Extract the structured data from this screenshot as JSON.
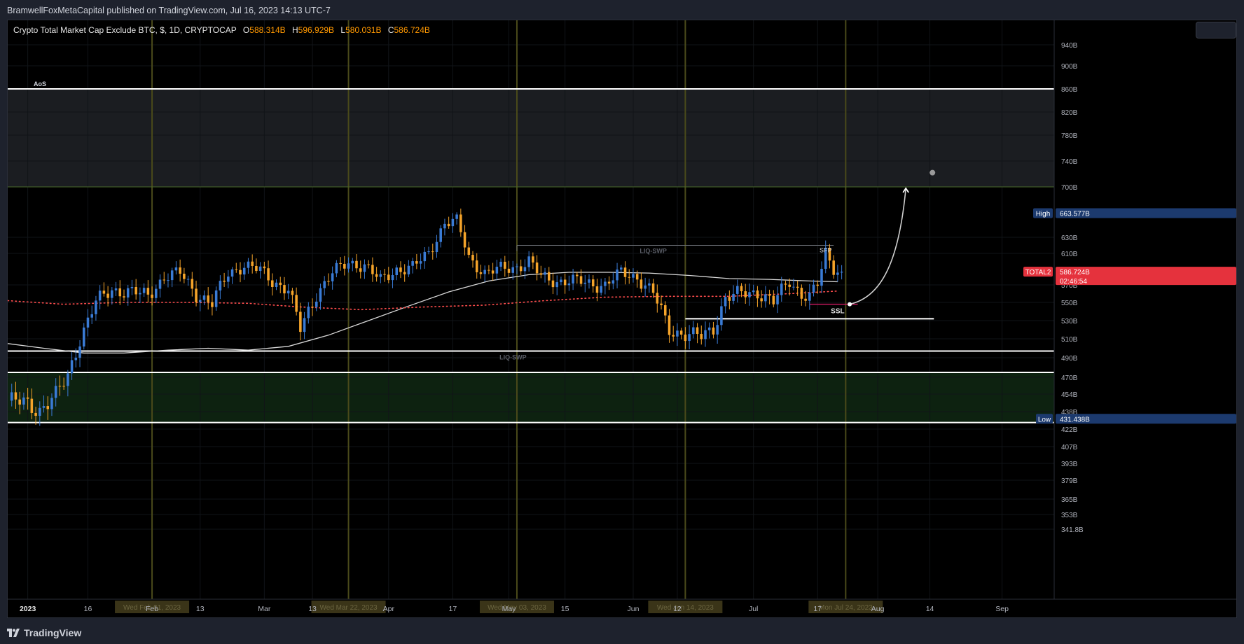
{
  "header": {
    "published": "BramwellFoxMetaCapital published on TradingView.com, Jul 16, 2023 14:13 UTC-7"
  },
  "legend": {
    "symbol": "Crypto Total Market Cap Exclude BTC, $, 1D, CRYPTOCAP",
    "open_label": "O",
    "open": "588.314B",
    "high_label": "H",
    "high": "596.929B",
    "low_label": "L",
    "low": "580.031B",
    "close_label": "C",
    "close": "586.724B"
  },
  "footer": {
    "brand": "TradingView"
  },
  "colors": {
    "background": "#000000",
    "up_candle": "#3a7bd5",
    "down_candle": "#f5a42a",
    "sma": "#d9d9d9",
    "ema_dots": "#ff4d4d",
    "supply_zone": "#1b1d21",
    "demand_zone": "#0d2210",
    "vline": "#4a4a1a",
    "badge_total": "#e5323d",
    "badge_high_low": "#1c3a6e"
  },
  "chart_data": {
    "type": "candlestick",
    "title": "Crypto Total Market Cap Exclude BTC, $, 1D, CRYPTOCAP",
    "x_range": [
      "2022-12-27",
      "2023-09-14"
    ],
    "ylim": [
      341.8,
      960
    ],
    "y_ticks": [
      "940B",
      "900B",
      "860B",
      "820B",
      "780B",
      "740B",
      "700B",
      "630B",
      "610B",
      "570B",
      "550B",
      "530B",
      "510B",
      "490B",
      "470B",
      "454B",
      "438B",
      "422B",
      "407B",
      "393B",
      "379B",
      "365B",
      "353B",
      "341.8B"
    ],
    "y_tick_values": [
      940,
      900,
      860,
      820,
      780,
      740,
      700,
      630,
      610,
      570,
      550,
      530,
      510,
      490,
      470,
      454,
      438,
      422,
      407,
      393,
      379,
      365,
      353,
      341.8
    ],
    "x_ticks": [
      {
        "label": "2023",
        "date": "2023-01-01",
        "bold": true
      },
      {
        "label": "16",
        "date": "2023-01-16"
      },
      {
        "label": "Feb",
        "date": "2023-02-01"
      },
      {
        "label": "13",
        "date": "2023-02-13"
      },
      {
        "label": "Mar",
        "date": "2023-03-01"
      },
      {
        "label": "13",
        "date": "2023-03-13"
      },
      {
        "label": "Apr",
        "date": "2023-04-01"
      },
      {
        "label": "17",
        "date": "2023-04-17"
      },
      {
        "label": "May",
        "date": "2023-05-01"
      },
      {
        "label": "15",
        "date": "2023-05-15"
      },
      {
        "label": "Jun",
        "date": "2023-06-01"
      },
      {
        "label": "12",
        "date": "2023-06-12"
      },
      {
        "label": "Jul",
        "date": "2023-07-01"
      },
      {
        "label": "17",
        "date": "2023-07-17"
      },
      {
        "label": "Aug",
        "date": "2023-08-01"
      },
      {
        "label": "14",
        "date": "2023-08-14"
      },
      {
        "label": "Sep",
        "date": "2023-09-01"
      }
    ],
    "date_markers": [
      {
        "label": "Wed Feb 01, 2023",
        "date": "2023-02-01"
      },
      {
        "label": "Wed Mar 22, 2023",
        "date": "2023-03-22"
      },
      {
        "label": "Wed May 03, 2023",
        "date": "2023-05-03"
      },
      {
        "label": "Wed Jun 14, 2023",
        "date": "2023-06-14"
      },
      {
        "label": "Mon Jul 24, 2023",
        "date": "2023-07-24"
      }
    ],
    "close_path": [
      [
        "2022-12-27",
        448
      ],
      [
        "2023-01-01",
        445
      ],
      [
        "2023-01-04",
        440
      ],
      [
        "2023-01-08",
        452
      ],
      [
        "2023-01-11",
        472
      ],
      [
        "2023-01-14",
        510
      ],
      [
        "2023-01-18",
        550
      ],
      [
        "2023-01-22",
        565
      ],
      [
        "2023-01-26",
        562
      ],
      [
        "2023-01-31",
        558
      ],
      [
        "2023-02-04",
        580
      ],
      [
        "2023-02-08",
        585
      ],
      [
        "2023-02-12",
        560
      ],
      [
        "2023-02-16",
        548
      ],
      [
        "2023-02-20",
        585
      ],
      [
        "2023-02-24",
        595
      ],
      [
        "2023-02-28",
        588
      ],
      [
        "2023-03-03",
        575
      ],
      [
        "2023-03-07",
        565
      ],
      [
        "2023-03-10",
        520
      ],
      [
        "2023-03-14",
        560
      ],
      [
        "2023-03-18",
        585
      ],
      [
        "2023-03-22",
        598
      ],
      [
        "2023-03-26",
        595
      ],
      [
        "2023-03-30",
        575
      ],
      [
        "2023-04-03",
        590
      ],
      [
        "2023-04-07",
        592
      ],
      [
        "2023-04-11",
        610
      ],
      [
        "2023-04-15",
        650
      ],
      [
        "2023-04-18",
        652
      ],
      [
        "2023-04-21",
        605
      ],
      [
        "2023-04-25",
        585
      ],
      [
        "2023-04-29",
        590
      ],
      [
        "2023-05-03",
        593
      ],
      [
        "2023-05-06",
        600
      ],
      [
        "2023-05-09",
        580
      ],
      [
        "2023-05-13",
        575
      ],
      [
        "2023-05-17",
        575
      ],
      [
        "2023-05-21",
        572
      ],
      [
        "2023-05-25",
        570
      ],
      [
        "2023-05-29",
        585
      ],
      [
        "2023-06-02",
        580
      ],
      [
        "2023-06-06",
        560
      ],
      [
        "2023-06-10",
        520
      ],
      [
        "2023-06-14",
        515
      ],
      [
        "2023-06-18",
        512
      ],
      [
        "2023-06-21",
        522
      ],
      [
        "2023-06-24",
        555
      ],
      [
        "2023-06-28",
        560
      ],
      [
        "2023-07-02",
        562
      ],
      [
        "2023-07-06",
        550
      ],
      [
        "2023-07-10",
        575
      ],
      [
        "2023-07-13",
        560
      ],
      [
        "2023-07-15",
        556
      ],
      [
        "2023-07-17",
        570
      ],
      [
        "2023-07-19",
        610
      ],
      [
        "2023-07-21",
        592
      ],
      [
        "2023-07-23",
        586.724
      ]
    ],
    "sma_path": [
      [
        "2022-12-27",
        505
      ],
      [
        "2023-01-05",
        500
      ],
      [
        "2023-01-15",
        495
      ],
      [
        "2023-01-25",
        495
      ],
      [
        "2023-02-05",
        498
      ],
      [
        "2023-02-15",
        500
      ],
      [
        "2023-02-25",
        498
      ],
      [
        "2023-03-07",
        502
      ],
      [
        "2023-03-17",
        514
      ],
      [
        "2023-03-27",
        530
      ],
      [
        "2023-04-06",
        546
      ],
      [
        "2023-04-16",
        562
      ],
      [
        "2023-04-26",
        575
      ],
      [
        "2023-05-06",
        583
      ],
      [
        "2023-05-16",
        586
      ],
      [
        "2023-05-26",
        586
      ],
      [
        "2023-06-05",
        585
      ],
      [
        "2023-06-15",
        582
      ],
      [
        "2023-06-25",
        578
      ],
      [
        "2023-07-05",
        577
      ],
      [
        "2023-07-15",
        575
      ],
      [
        "2023-07-22",
        574
      ]
    ],
    "ema_path": [
      [
        "2022-12-27",
        552
      ],
      [
        "2023-01-10",
        548
      ],
      [
        "2023-01-25",
        550
      ],
      [
        "2023-02-10",
        550
      ],
      [
        "2023-02-25",
        549
      ],
      [
        "2023-03-10",
        545
      ],
      [
        "2023-03-25",
        542
      ],
      [
        "2023-04-10",
        545
      ],
      [
        "2023-04-25",
        547
      ],
      [
        "2023-05-10",
        552
      ],
      [
        "2023-05-25",
        556
      ],
      [
        "2023-06-10",
        557
      ],
      [
        "2023-06-25",
        557
      ],
      [
        "2023-07-10",
        560
      ],
      [
        "2023-07-22",
        563
      ]
    ],
    "zones": [
      {
        "name": "AoS",
        "from": 700,
        "to": 860,
        "label": "AoS"
      },
      {
        "name": "demand",
        "from": 428,
        "to": 475,
        "label": ""
      }
    ],
    "levels": [
      {
        "value": 860,
        "label": "AoS"
      },
      {
        "value": 700,
        "label": ""
      },
      {
        "value": 497,
        "label": "LIQ-SWP"
      },
      {
        "value": 475,
        "label": ""
      },
      {
        "value": 428,
        "label": ""
      }
    ],
    "annotations": [
      {
        "text": "LIQ-SWP",
        "date": "2023-06-06",
        "value": 614
      },
      {
        "text": "SFP",
        "date": "2023-07-19",
        "value": 615
      },
      {
        "text": "SSL",
        "date": "2023-07-22",
        "value": 541
      }
    ],
    "liq_swp_top": {
      "from": "2023-05-03",
      "to": "2023-07-21",
      "value": 620
    },
    "ssl_line": {
      "from": "2023-07-15",
      "to": "2023-07-27",
      "value": 548
    },
    "support_line": {
      "from": "2023-06-14",
      "to": "2023-08-15",
      "value": 532
    },
    "projection": {
      "from_date": "2023-07-25",
      "from_value": 548,
      "to_date": "2023-08-08",
      "to_value": 698
    },
    "price_badges": [
      {
        "label": "High",
        "value": "663.577B",
        "level": 663.577
      },
      {
        "label": "TOTAL2",
        "value": "586.724B",
        "timer": "02:46:54",
        "level": 586.724
      },
      {
        "label": "Low",
        "value": "431.438B",
        "level": 431.438
      }
    ]
  }
}
